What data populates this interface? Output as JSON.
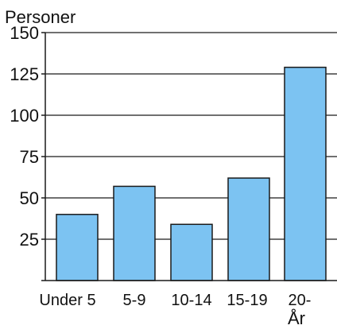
{
  "chart_data": {
    "type": "bar",
    "title": "",
    "ylabel": "Personer",
    "xlabel": "År",
    "categories": [
      "Under 5",
      "5-9",
      "10-14",
      "15-19",
      "20-"
    ],
    "values": [
      40,
      57,
      34,
      62,
      129
    ],
    "ylim": [
      0,
      150
    ],
    "yticks": [
      25,
      50,
      75,
      100,
      125,
      150
    ],
    "grid": true,
    "legend": "none",
    "colors": {
      "bar_fill": "#7cc3f2",
      "bar_stroke": "#1a1a1a",
      "axis": "#1a1a1a",
      "grid": "#1a1a1a"
    }
  }
}
